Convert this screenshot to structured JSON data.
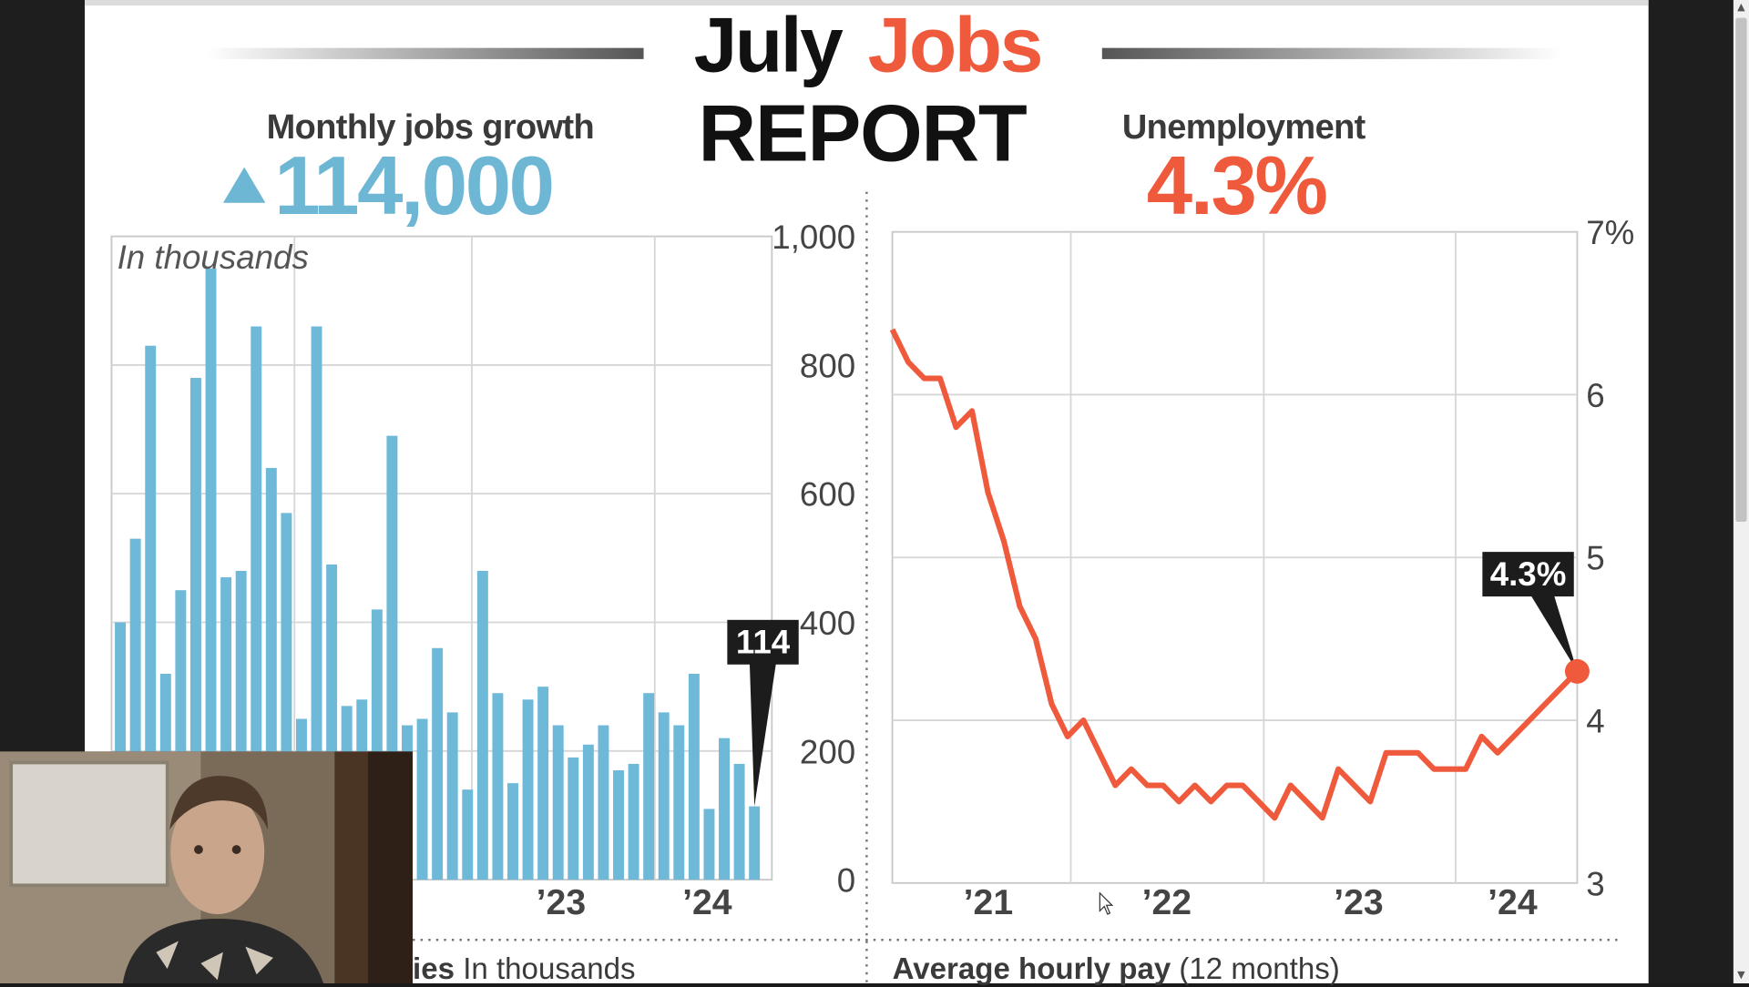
{
  "title": {
    "part1": "July",
    "part2": "Jobs",
    "part3": "REPORT"
  },
  "jobs_stat": {
    "label": "Monthly jobs growth",
    "value": "114,000",
    "arrow": "up-triangle-icon"
  },
  "unemployment_stat": {
    "label": "Unemployment",
    "value": "4.3%"
  },
  "footer": {
    "left_bold": "ies",
    "left_rest": " In thousands",
    "right_bold": "Average hourly pay",
    "right_rest": " (12 months)"
  },
  "colors": {
    "jobs": "#6db6d4",
    "bars": "#6eb8d8",
    "unemployment": "#f05a3c",
    "dark": "#1c1c1c"
  },
  "chart_data": [
    {
      "type": "bar",
      "title": "Monthly jobs growth",
      "annotation_top_left": "In thousands",
      "ylim": [
        0,
        1000
      ],
      "yticks": [
        "1,000",
        "800",
        "600",
        "400",
        "200",
        "0"
      ],
      "xtick_labels": [
        "’23",
        "’24"
      ],
      "grid": true,
      "callout": "114",
      "values": [
        400,
        530,
        830,
        320,
        450,
        780,
        950,
        470,
        480,
        860,
        640,
        570,
        250,
        860,
        490,
        270,
        280,
        420,
        690,
        240,
        250,
        360,
        260,
        140,
        480,
        290,
        150,
        280,
        300,
        240,
        190,
        210,
        240,
        170,
        180,
        290,
        260,
        240,
        320,
        110,
        220,
        180,
        114
      ]
    },
    {
      "type": "line",
      "title": "Unemployment",
      "ylim": [
        3,
        7
      ],
      "yticks": [
        "7%",
        "6",
        "5",
        "4",
        "3"
      ],
      "xtick_labels": [
        "’21",
        "’22",
        "’23",
        "’24"
      ],
      "grid": true,
      "callout": "4.3%",
      "values": [
        6.4,
        6.2,
        6.1,
        6.1,
        5.8,
        5.9,
        5.4,
        5.1,
        4.7,
        4.5,
        4.1,
        3.9,
        4.0,
        3.8,
        3.6,
        3.7,
        3.6,
        3.6,
        3.5,
        3.6,
        3.5,
        3.6,
        3.6,
        3.5,
        3.4,
        3.6,
        3.5,
        3.4,
        3.7,
        3.6,
        3.5,
        3.8,
        3.8,
        3.8,
        3.7,
        3.7,
        3.7,
        3.9,
        3.8,
        3.9,
        4.0,
        4.1,
        4.2,
        4.3
      ]
    }
  ]
}
